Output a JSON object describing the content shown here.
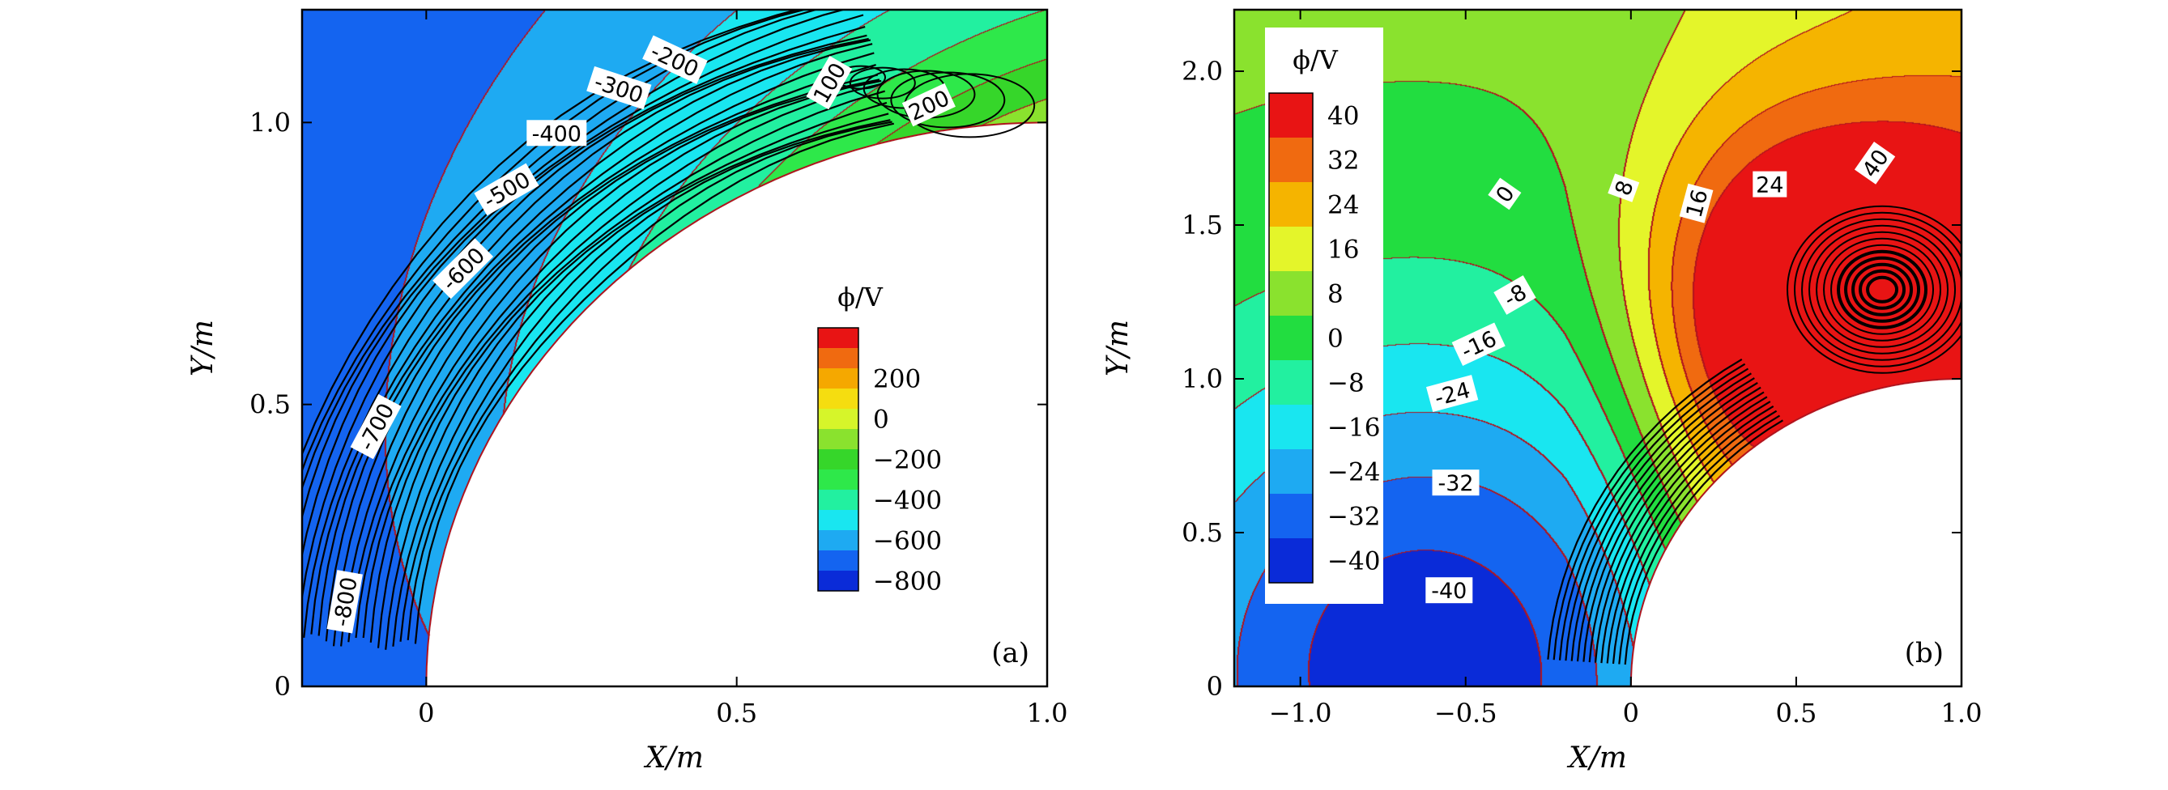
{
  "chart_data": [
    {
      "type": "contour",
      "panel_label": "(a)",
      "xlabel": "X/m",
      "ylabel": "Y/m",
      "xlim": [
        -0.2,
        1.0
      ],
      "ylim": [
        0,
        1.2
      ],
      "xticks": [
        {
          "value": 0,
          "label": "0"
        },
        {
          "value": 0.5,
          "label": "0.5"
        },
        {
          "value": 1.0,
          "label": "1.0"
        }
      ],
      "yticks": [
        {
          "value": 0,
          "label": "0"
        },
        {
          "value": 0.5,
          "label": "0.5"
        },
        {
          "value": 1.0,
          "label": "1.0"
        }
      ],
      "colorbar": {
        "title": "ϕ/V",
        "placement": "right-center",
        "colors": [
          "#0a2bd8",
          "#1464f0",
          "#1eaaf2",
          "#19e6f0",
          "#22f0a0",
          "#2ee84a",
          "#36d62a",
          "#8ae22e",
          "#d6f52a",
          "#f5dd10",
          "#f5a800",
          "#f06a10",
          "#e81414"
        ],
        "labels": [
          {
            "index": 0,
            "text": "−800"
          },
          {
            "index": 2,
            "text": "−600"
          },
          {
            "index": 4,
            "text": "−400"
          },
          {
            "index": 6,
            "text": "−200"
          },
          {
            "index": 8,
            "text": "0"
          },
          {
            "index": 10,
            "text": "200"
          }
        ]
      },
      "contour_labels": [
        {
          "text": "-800",
          "x": -0.13,
          "y": 0.15,
          "rot": -80
        },
        {
          "text": "-700",
          "x": -0.08,
          "y": 0.46,
          "rot": -62
        },
        {
          "text": "-600",
          "x": 0.06,
          "y": 0.74,
          "rot": -45
        },
        {
          "text": "-500",
          "x": 0.13,
          "y": 0.88,
          "rot": -30
        },
        {
          "text": "-400",
          "x": 0.21,
          "y": 0.98,
          "rot": 0
        },
        {
          "text": "-300",
          "x": 0.31,
          "y": 1.06,
          "rot": 18
        },
        {
          "text": "-200",
          "x": 0.4,
          "y": 1.11,
          "rot": 25
        },
        {
          "text": "100",
          "x": 0.65,
          "y": 1.07,
          "rot": -60
        },
        {
          "text": "200",
          "x": 0.81,
          "y": 1.03,
          "rot": -25
        }
      ]
    },
    {
      "type": "contour",
      "panel_label": "(b)",
      "xlabel": "X/m",
      "ylabel": "Y/m",
      "xlim": [
        -1.2,
        1.0
      ],
      "ylim": [
        0,
        2.2
      ],
      "xticks": [
        {
          "value": -1.0,
          "label": "−1.0"
        },
        {
          "value": -0.5,
          "label": "−0.5"
        },
        {
          "value": 0,
          "label": "0"
        },
        {
          "value": 0.5,
          "label": "0.5"
        },
        {
          "value": 1.0,
          "label": "1.0"
        }
      ],
      "yticks": [
        {
          "value": 0,
          "label": "0"
        },
        {
          "value": 0.5,
          "label": "0.5"
        },
        {
          "value": 1.0,
          "label": "1.0"
        },
        {
          "value": 1.5,
          "label": "1.5"
        },
        {
          "value": 2.0,
          "label": "2.0"
        }
      ],
      "colorbar": {
        "title": "ϕ/V",
        "placement": "top-left",
        "colors": [
          "#0a2bd8",
          "#1464f0",
          "#1eaaf2",
          "#19e6f0",
          "#22f0a0",
          "#22dd40",
          "#8ae22e",
          "#e4f52a",
          "#f5b400",
          "#f06a10",
          "#e81414"
        ],
        "labels": [
          {
            "index": 0,
            "text": "−40"
          },
          {
            "index": 1,
            "text": "−32"
          },
          {
            "index": 2,
            "text": "−24"
          },
          {
            "index": 3,
            "text": "−16"
          },
          {
            "index": 4,
            "text": "−8"
          },
          {
            "index": 5,
            "text": "0"
          },
          {
            "index": 6,
            "text": "8"
          },
          {
            "index": 7,
            "text": "16"
          },
          {
            "index": 8,
            "text": "24"
          },
          {
            "index": 9,
            "text": "32"
          },
          {
            "index": 10,
            "text": "40"
          }
        ]
      },
      "contour_labels": [
        {
          "text": "0",
          "x": -0.38,
          "y": 1.6,
          "rot": -55
        },
        {
          "text": "8",
          "x": -0.02,
          "y": 1.62,
          "rot": -70
        },
        {
          "text": "16",
          "x": 0.2,
          "y": 1.57,
          "rot": -75
        },
        {
          "text": "24",
          "x": 0.42,
          "y": 1.63,
          "rot": 0
        },
        {
          "text": "40",
          "x": 0.74,
          "y": 1.7,
          "rot": -55
        },
        {
          "text": "-8",
          "x": -0.35,
          "y": 1.27,
          "rot": -30
        },
        {
          "text": "-16",
          "x": -0.46,
          "y": 1.11,
          "rot": -25
        },
        {
          "text": "-24",
          "x": -0.54,
          "y": 0.95,
          "rot": -15
        },
        {
          "text": "-32",
          "x": -0.53,
          "y": 0.66,
          "rot": 0
        },
        {
          "text": "-40",
          "x": -0.55,
          "y": 0.31,
          "rot": 0
        }
      ]
    }
  ]
}
